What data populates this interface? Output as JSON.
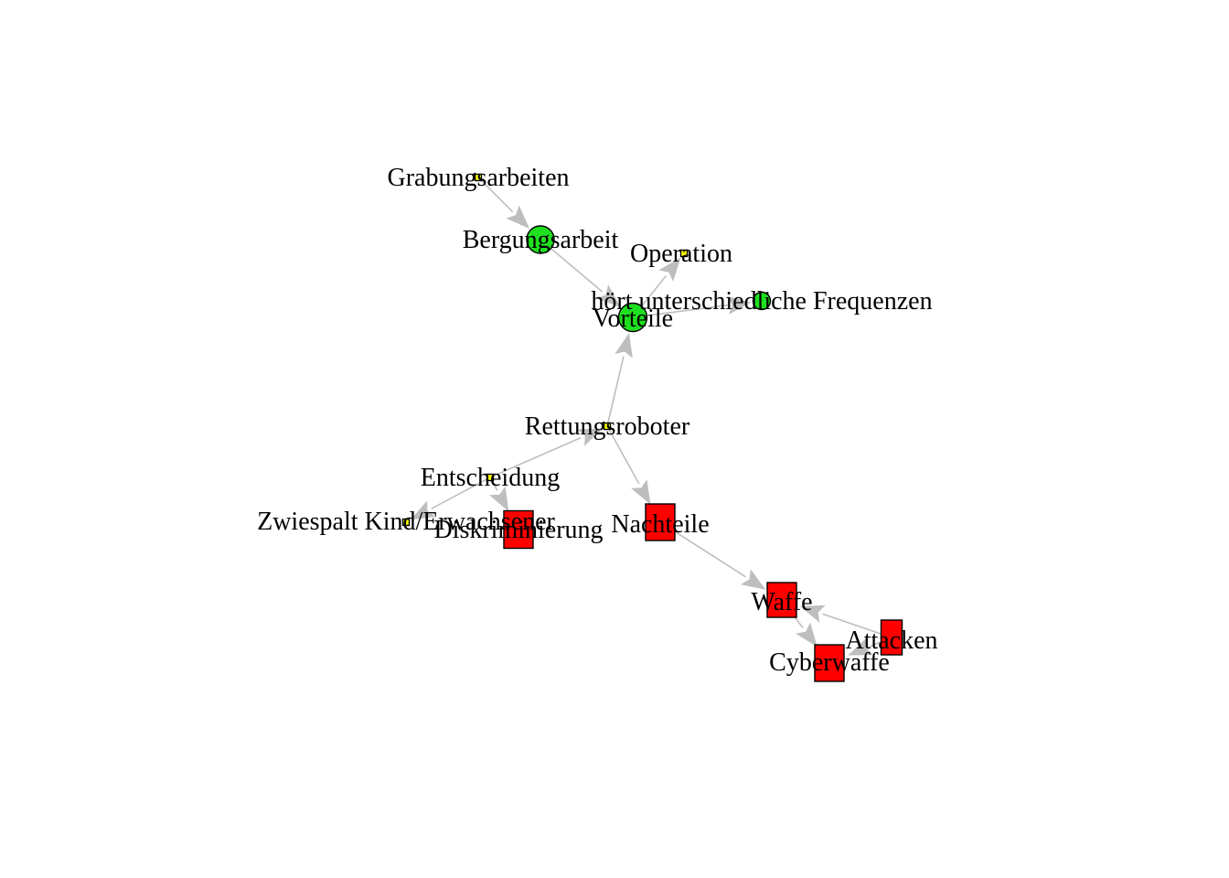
{
  "colors": {
    "green": "#1fe01f",
    "red": "#ff0000",
    "yellow": "#ffff00",
    "edge": "#bebebe",
    "border": "#000000"
  },
  "nodes": [
    {
      "id": "grabungsarbeiten",
      "label": "Grabungsarbeiten",
      "shape": "square",
      "size": "small",
      "color": "yellow"
    },
    {
      "id": "bergungsarbeit",
      "label": "Bergungsarbeit",
      "shape": "circle",
      "size": "large",
      "color": "green"
    },
    {
      "id": "operation",
      "label": "Operation",
      "shape": "square",
      "size": "small",
      "color": "yellow"
    },
    {
      "id": "hoert",
      "label": "hört unterschiedliche Frequenzen",
      "shape": "circle",
      "size": "medium",
      "color": "green"
    },
    {
      "id": "vorteile",
      "label": "Vorteile",
      "shape": "circle",
      "size": "large",
      "color": "green"
    },
    {
      "id": "rettungsroboter",
      "label": "Rettungsroboter",
      "shape": "square",
      "size": "small",
      "color": "yellow"
    },
    {
      "id": "entscheidung",
      "label": "Entscheidung",
      "shape": "square",
      "size": "small",
      "color": "yellow"
    },
    {
      "id": "zwiespalt",
      "label": "Zwiespalt Kind/Erwachsener",
      "shape": "square",
      "size": "small",
      "color": "yellow"
    },
    {
      "id": "diskriminierung",
      "label": "Diskriminierung",
      "shape": "rect",
      "size": "large",
      "color": "red"
    },
    {
      "id": "nachteile",
      "label": "Nachteile",
      "shape": "rect",
      "size": "large",
      "color": "red"
    },
    {
      "id": "waffe",
      "label": "Waffe",
      "shape": "rect",
      "size": "large",
      "color": "red"
    },
    {
      "id": "attacken",
      "label": "Attacken",
      "shape": "rect",
      "size": "medium",
      "color": "red"
    },
    {
      "id": "cyberwaffe",
      "label": "Cyberwaffe",
      "shape": "rect",
      "size": "large",
      "color": "red"
    }
  ],
  "edges": [
    {
      "from": "grabungsarbeiten",
      "to": "bergungsarbeit"
    },
    {
      "from": "bergungsarbeit",
      "to": "vorteile"
    },
    {
      "from": "vorteile",
      "to": "operation"
    },
    {
      "from": "vorteile",
      "to": "hoert"
    },
    {
      "from": "rettungsroboter",
      "to": "vorteile"
    },
    {
      "from": "rettungsroboter",
      "to": "nachteile"
    },
    {
      "from": "entscheidung",
      "to": "rettungsroboter"
    },
    {
      "from": "entscheidung",
      "to": "zwiespalt"
    },
    {
      "from": "entscheidung",
      "to": "diskriminierung"
    },
    {
      "from": "nachteile",
      "to": "waffe"
    },
    {
      "from": "waffe",
      "to": "cyberwaffe"
    },
    {
      "from": "attacken",
      "to": "waffe"
    },
    {
      "from": "attacken",
      "to": "cyberwaffe"
    }
  ]
}
